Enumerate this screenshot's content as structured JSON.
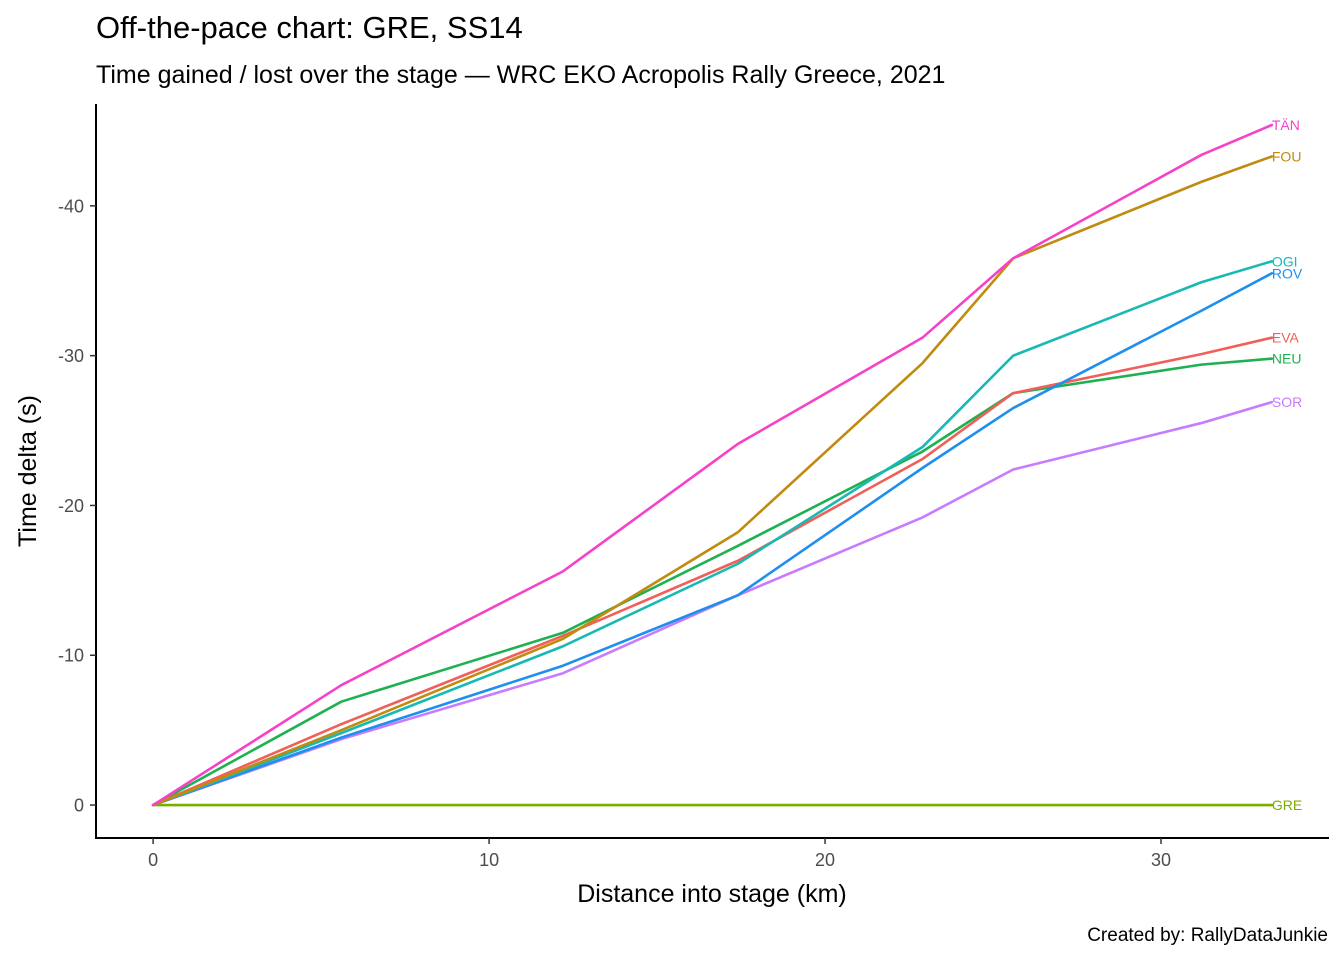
{
  "chart_data": {
    "type": "line",
    "title": "Off-the-pace chart: GRE, SS14",
    "subtitle": "Time gained / lost over the stage — WRC EKO Acropolis Rally Greece, 2021",
    "xlabel": "Distance into stage (km)",
    "ylabel": "Time delta (s)",
    "caption": "Created by: RallyDataJunkie",
    "xlim": [
      -1.7,
      35.0
    ],
    "ylim": [
      2.2,
      -46.8
    ],
    "y_reversed": true,
    "x_ticks": [
      0,
      10,
      20,
      30
    ],
    "x_tick_labels": [
      "0",
      "10",
      "20",
      "30"
    ],
    "y_ticks": [
      0,
      -10,
      -20,
      -30,
      -40
    ],
    "y_tick_labels": [
      "0",
      "-10",
      "-20",
      "-30",
      "-40"
    ],
    "grid": false,
    "legend": "none (direct end labels)",
    "x": [
      0,
      5.6,
      12.2,
      17.4,
      22.9,
      25.6,
      31.2,
      33.3
    ],
    "series": [
      {
        "name": "GRE",
        "label": "GRE",
        "color": "#7cae00",
        "values": [
          0,
          0,
          0,
          0,
          0,
          0,
          0,
          0
        ]
      },
      {
        "name": "SOR",
        "label": "SOR",
        "color": "#c77cff",
        "values": [
          0,
          -4.4,
          -8.8,
          -14.0,
          -19.2,
          -22.4,
          -25.5,
          -26.9
        ]
      },
      {
        "name": "NEU",
        "label": "NEU",
        "color": "#1fb151",
        "values": [
          0,
          -6.9,
          -11.5,
          -17.3,
          -23.6,
          -27.5,
          -29.4,
          -29.8
        ]
      },
      {
        "name": "EVA",
        "label": "EVA",
        "color": "#f0605a",
        "values": [
          0,
          -5.4,
          -11.3,
          -16.3,
          -23.1,
          -27.5,
          -30.1,
          -31.2
        ]
      },
      {
        "name": "ROV",
        "label": "ROV",
        "color": "#1f8fef",
        "values": [
          0,
          -4.5,
          -9.3,
          -14.0,
          -22.5,
          -26.5,
          -33.0,
          -35.5
        ]
      },
      {
        "name": "OGI",
        "label": "OGI",
        "color": "#18b9b4",
        "values": [
          0,
          -4.8,
          -10.6,
          -16.1,
          -23.9,
          -30.0,
          -34.9,
          -36.3
        ]
      },
      {
        "name": "FOU",
        "label": "FOU",
        "color": "#c08b0e",
        "values": [
          0,
          -5.0,
          -11.1,
          -18.2,
          -29.5,
          -36.5,
          -41.6,
          -43.3
        ]
      },
      {
        "name": "TÄN",
        "label": "TÄN",
        "color": "#f542c9",
        "values": [
          0,
          -8.0,
          -15.6,
          -24.1,
          -31.2,
          -36.5,
          -43.4,
          -45.4
        ]
      }
    ]
  }
}
